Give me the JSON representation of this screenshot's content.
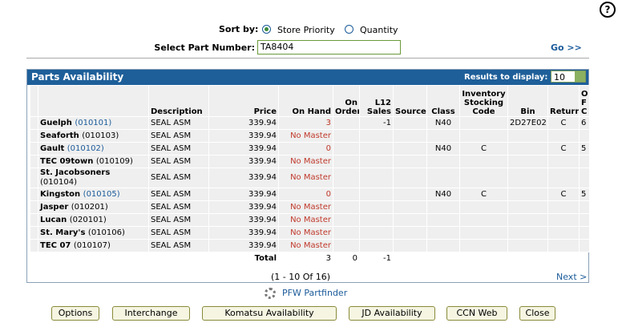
{
  "help": "?",
  "sort": {
    "label": "Sort by:",
    "options": [
      "Store Priority",
      "Quantity"
    ],
    "selected": 0
  },
  "part": {
    "label": "Select Part Number:",
    "value": "TA8404",
    "go": "Go >>"
  },
  "panel": {
    "title": "Parts Availability",
    "results_label": "Results to display:",
    "results_value": "10"
  },
  "table": {
    "headers": {
      "description": "Description",
      "price": "Price",
      "on_hand": "On Hand",
      "on_order": "On Order",
      "l12_sales": "L12 Sales",
      "source": "Source",
      "class": "Class",
      "isc": "Inventory Stocking Code",
      "bin": "Bin",
      "return": "Return",
      "ofc": "O F C"
    },
    "rows": [
      {
        "store": "Guelph",
        "code": "(010101)",
        "link": true,
        "description": "SEAL ASM",
        "price": "339.94",
        "on_hand": 3,
        "l12_sales": -1,
        "class": "N40",
        "bin": "2D27E02",
        "return": "C",
        "ofc": 6
      },
      {
        "store": "Seaforth",
        "code": "(010103)",
        "link": false,
        "description": "SEAL ASM",
        "price": "339.94",
        "on_hand": "No Master"
      },
      {
        "store": "Gault",
        "code": "(010102)",
        "link": true,
        "description": "SEAL ASM",
        "price": "339.94",
        "on_hand": 0,
        "class": "N40",
        "isc": "C",
        "return": "C",
        "ofc": 5
      },
      {
        "store": "TEC 09town",
        "code": "(010109)",
        "link": false,
        "description": "SEAL ASM",
        "price": "339.94",
        "on_hand": "No Master"
      },
      {
        "store": "St. Jacobsoners",
        "code": "(010104)",
        "link": false,
        "description": "SEAL ASM",
        "price": "339.94",
        "on_hand": "No Master"
      },
      {
        "store": "Kingston",
        "code": "(010105)",
        "link": true,
        "description": "SEAL ASM",
        "price": "339.94",
        "on_hand": 0,
        "class": "N40",
        "isc": "C",
        "return": "C",
        "ofc": 5
      },
      {
        "store": "Jasper",
        "code": "(010201)",
        "link": false,
        "description": "SEAL ASM",
        "price": "339.94",
        "on_hand": "No Master"
      },
      {
        "store": "Lucan",
        "code": "(020101)",
        "link": false,
        "description": "SEAL ASM",
        "price": "339.94",
        "on_hand": "No Master"
      },
      {
        "store": "St. Mary's",
        "code": "(010106)",
        "link": false,
        "description": "SEAL ASM",
        "price": "339.94",
        "on_hand": "No Master"
      },
      {
        "store": "TEC 07",
        "code": "(010107)",
        "link": false,
        "description": "SEAL ASM",
        "price": "339.94",
        "on_hand": "No Master"
      }
    ],
    "total": {
      "label": "Total",
      "on_hand": 3,
      "on_order": 0,
      "l12_sales": -1
    }
  },
  "pager": {
    "range": "(1 - 10 Of 16)",
    "next": "Next >"
  },
  "partfinder": "PFW Partfinder",
  "buttons": [
    "Options",
    "Interchange",
    "Komatsu Availability",
    "JD Availability",
    "CCN Web",
    "Close"
  ]
}
